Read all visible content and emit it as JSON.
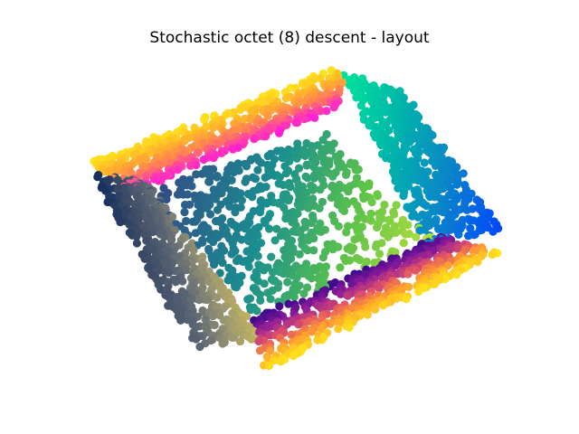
{
  "chart_data": {
    "type": "scatter",
    "title": "Stochastic octet (8) descent - layout",
    "xlabel": "",
    "ylabel": "",
    "axes_visible": false,
    "grid": false,
    "legend": "none",
    "point_color_encoding": "continuous colormap per point (gist_ncar-like)",
    "colors": {
      "navy": "#0d2a5c",
      "slate": "#5b6573",
      "olive_gray": "#9a9673",
      "khaki": "#c8b85a",
      "teal": "#1a8f8f",
      "green": "#5cc24a",
      "lime": "#b7e23a",
      "cyan_green": "#00e59a",
      "blue": "#0047ff",
      "magenta": "#ff1fd6",
      "orange": "#ff9f2f",
      "yellow": "#ffe31a",
      "purple": "#4a0aa0",
      "dark_purple": "#3b1d6b"
    }
  }
}
